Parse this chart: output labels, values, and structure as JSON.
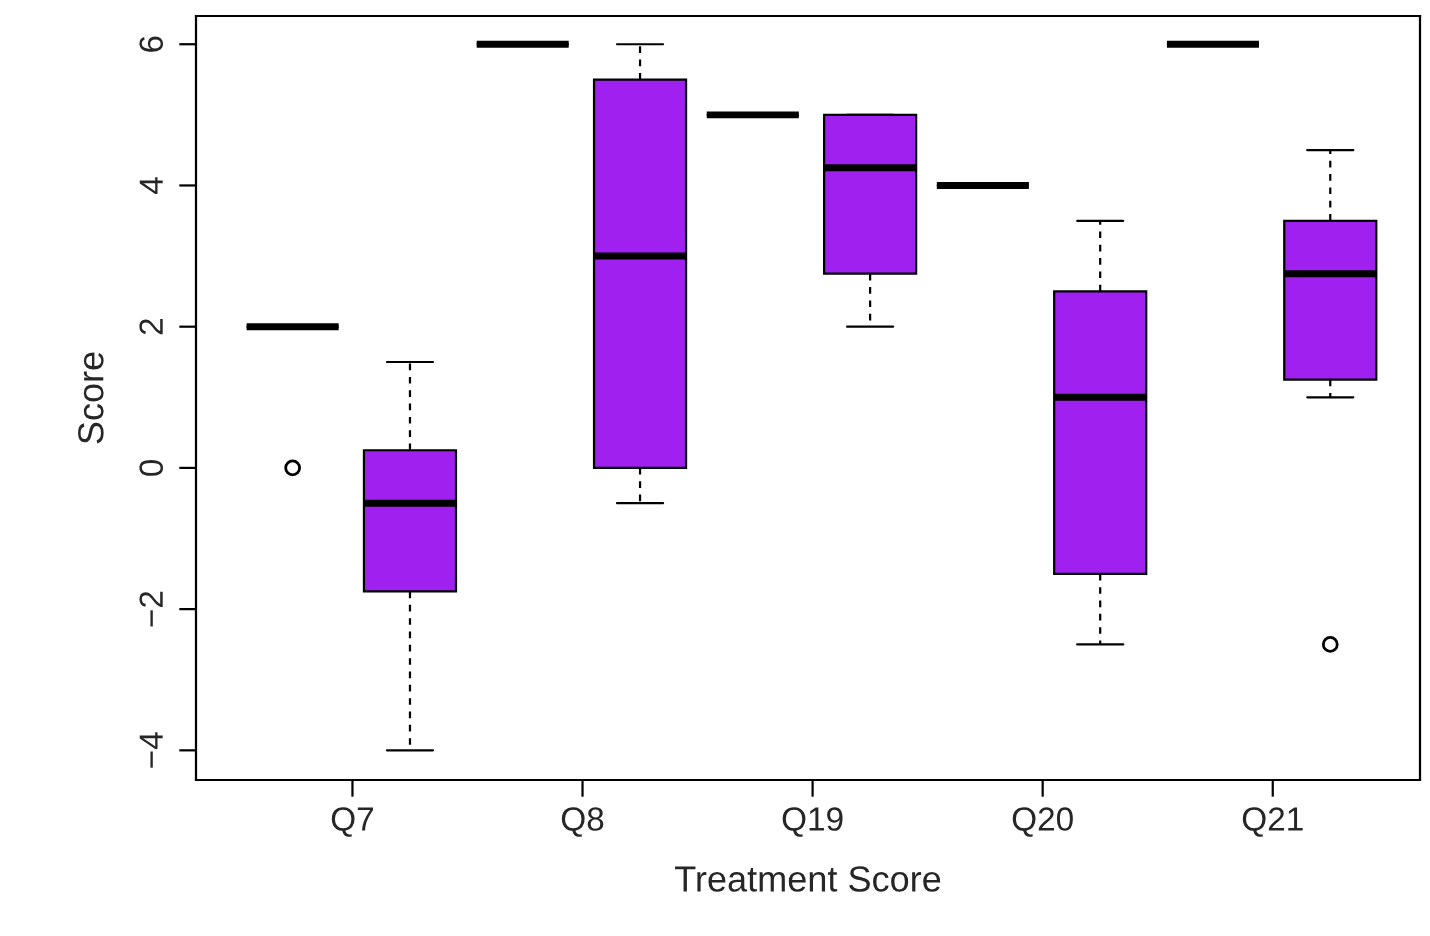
{
  "chart_data": {
    "type": "box",
    "xlabel": "Treatment Score",
    "ylabel": "Score",
    "categories": [
      "Q7",
      "Q8",
      "Q19",
      "Q20",
      "Q21"
    ],
    "ylim": [
      -4.42,
      6.4
    ],
    "yticks": [
      {
        "value": -4,
        "label": "−4"
      },
      {
        "value": -2,
        "label": "−2"
      },
      0,
      2,
      4,
      6
    ],
    "grid": false,
    "series": [
      {
        "color": "#000000",
        "boxes": [
          {
            "low": 2,
            "q1": 2,
            "median": 2,
            "q3": 2,
            "high": 2,
            "outliers": [
              0
            ]
          },
          {
            "low": 6,
            "q1": 6,
            "median": 6,
            "q3": 6,
            "high": 6
          },
          {
            "low": 5,
            "q1": 5,
            "median": 5,
            "q3": 5,
            "high": 5
          },
          {
            "low": 4,
            "q1": 4,
            "median": 4,
            "q3": 4,
            "high": 4
          },
          {
            "low": 6,
            "q1": 6,
            "median": 6,
            "q3": 6,
            "high": 6
          }
        ]
      },
      {
        "color": "#a020f0",
        "boxes": [
          {
            "low": -4,
            "q1": -1.75,
            "median": -0.5,
            "q3": 0.25,
            "high": 1.5
          },
          {
            "low": -0.5,
            "q1": 0,
            "median": 3,
            "q3": 5.5,
            "high": 6
          },
          {
            "low": 2,
            "q1": 2.75,
            "median": 4.25,
            "q3": 5,
            "high": 5
          },
          {
            "low": -2.5,
            "q1": -1.5,
            "median": 1,
            "q3": 2.5,
            "high": 3.5
          },
          {
            "low": 1,
            "q1": 1.25,
            "median": 2.75,
            "q3": 3.5,
            "high": 4.5,
            "outliers": [
              -2.5
            ]
          }
        ]
      }
    ]
  }
}
